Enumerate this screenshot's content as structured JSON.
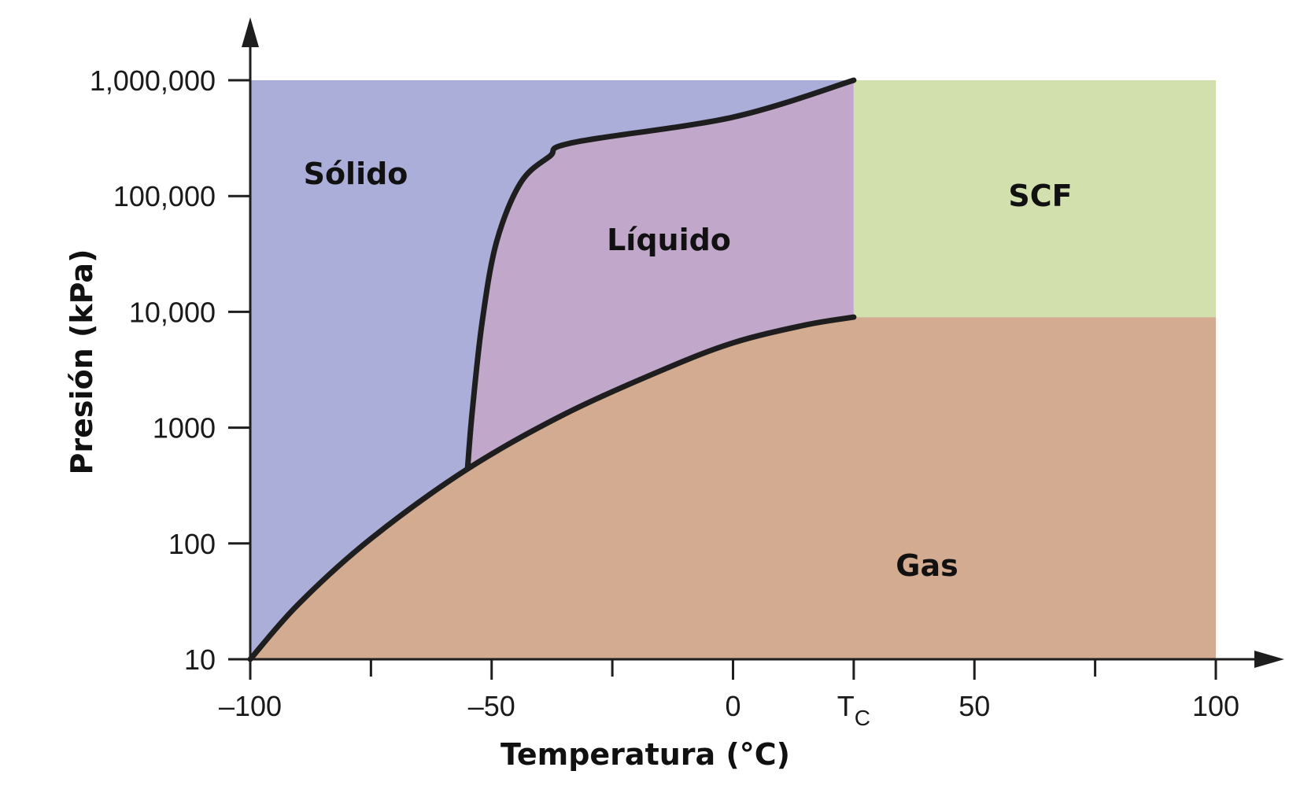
{
  "colors": {
    "solid": "#abaed8",
    "liquid": "#c1a7c9",
    "gas": "#d3ab91",
    "scf": "#d2e0ae",
    "line": "#1e1e1e"
  },
  "regions": {
    "solid": "Sólido",
    "liquid": "Líquido",
    "gas": "Gas",
    "scf": "SCF"
  },
  "axes": {
    "x_title": "Temperatura (°C)",
    "y_title": "Presión (kPa)",
    "x_ticks": [
      {
        "value": -100,
        "label": "–100"
      },
      {
        "value": -50,
        "label": "–50"
      },
      {
        "value": 0,
        "label": "0"
      },
      {
        "value": 25,
        "label": "T",
        "sub": "C"
      },
      {
        "value": 50,
        "label": "50"
      },
      {
        "value": 100,
        "label": "100"
      }
    ],
    "x_minor_ticks": [
      -75,
      -25,
      75
    ],
    "y_ticks": [
      {
        "value": 10,
        "label": "10"
      },
      {
        "value": 100,
        "label": "100"
      },
      {
        "value": 1000,
        "label": "1000"
      },
      {
        "value": 10000,
        "label": "10,000"
      },
      {
        "value": 100000,
        "label": "100,000"
      },
      {
        "value": 1000000,
        "label": "1,000,000"
      }
    ],
    "x_range": [
      -100,
      100
    ],
    "y_range": [
      10,
      1000000
    ],
    "y_scale": "log"
  },
  "boundaries": {
    "vaporization": [
      [
        -100,
        10
      ],
      [
        -90,
        30
      ],
      [
        -75,
        110
      ],
      [
        -55,
        440
      ],
      [
        -35,
        1300
      ],
      [
        -15,
        3100
      ],
      [
        0,
        5400
      ],
      [
        15,
        7700
      ],
      [
        25,
        9000
      ]
    ],
    "melting": [
      [
        -55,
        440
      ],
      [
        -54,
        1400
      ],
      [
        -52,
        8000
      ],
      [
        -49,
        40000
      ],
      [
        -44,
        130000
      ],
      [
        -38,
        220000
      ],
      [
        -33,
        290000
      ],
      [
        0,
        480000
      ],
      [
        25,
        1000000
      ]
    ],
    "triple_point": [
      -55,
      440
    ],
    "critical_point": [
      25,
      9000
    ]
  }
}
